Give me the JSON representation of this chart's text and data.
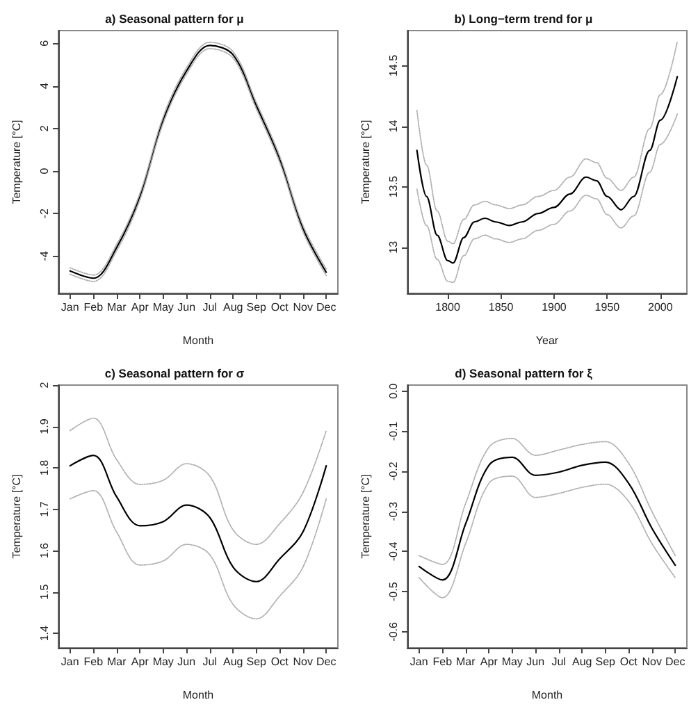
{
  "chart_data": [
    {
      "type": "line",
      "title": "a) Seasonal pattern for μ",
      "xlabel": "Month",
      "ylabel": "Temperature [°C]",
      "ylim": [
        -5.75,
        6.6
      ],
      "categories": [
        "Jan",
        "Feb",
        "Mar",
        "Apr",
        "May",
        "Jun",
        "Jul",
        "Aug",
        "Sep",
        "Oct",
        "Nov",
        "Dec"
      ],
      "yticks": [
        -4,
        -2,
        0,
        2,
        4,
        6
      ],
      "grid": false,
      "line_style": "solid",
      "series": [
        {
          "color": "#000000",
          "values": [
            -4.7,
            -5.04,
            -3.6,
            -1.2,
            2.4,
            4.7,
            5.9,
            5.46,
            3.07,
            0.56,
            -2.7,
            -4.76
          ]
        },
        {
          "color": "#b0b0b0",
          "line_style": "dotted",
          "values": [
            -4.85,
            -5.19,
            -3.75,
            -1.35,
            2.25,
            4.55,
            5.75,
            5.31,
            2.92,
            0.41,
            -2.85,
            -4.91
          ]
        },
        {
          "color": "#b0b0b0",
          "line_style": "dotted",
          "values": [
            -4.55,
            -4.89,
            -3.45,
            -1.05,
            2.55,
            4.85,
            6.05,
            5.61,
            3.22,
            0.71,
            -2.55,
            -4.61
          ]
        }
      ]
    },
    {
      "type": "line",
      "title": "b) Long−term trend for μ",
      "xlabel": "Year",
      "ylabel": "Temperature [°C]",
      "xlim": [
        1762,
        2025
      ],
      "ylim": [
        12.62,
        14.79
      ],
      "xticks": [
        1800,
        1850,
        1900,
        1950,
        2000
      ],
      "yticks": [
        13.0,
        13.5,
        14.0,
        14.5
      ],
      "grid": false,
      "line_style": "solid",
      "x": [
        1771,
        1780,
        1790,
        1800,
        1805,
        1815,
        1825,
        1835,
        1845,
        1858,
        1870,
        1885,
        1900,
        1915,
        1930,
        1940,
        1950,
        1963,
        1975,
        1990,
        2000,
        2016
      ],
      "series": [
        {
          "color": "#000000",
          "values": [
            13.8,
            13.42,
            13.1,
            12.89,
            12.87,
            13.08,
            13.21,
            13.24,
            13.21,
            13.18,
            13.21,
            13.28,
            13.33,
            13.44,
            13.58,
            13.55,
            13.42,
            13.31,
            13.42,
            13.8,
            14.05,
            14.41
          ]
        },
        {
          "color": "#b0b0b0",
          "line_style": "dotted",
          "values": [
            13.48,
            13.18,
            12.9,
            12.72,
            12.71,
            12.93,
            13.07,
            13.1,
            13.07,
            13.04,
            13.07,
            13.14,
            13.19,
            13.3,
            13.43,
            13.4,
            13.27,
            13.16,
            13.26,
            13.62,
            13.85,
            14.1
          ]
        },
        {
          "color": "#b0b0b0",
          "line_style": "dotted",
          "values": [
            14.13,
            13.68,
            13.3,
            13.05,
            13.03,
            13.23,
            13.35,
            13.38,
            13.35,
            13.32,
            13.35,
            13.42,
            13.47,
            13.58,
            13.73,
            13.7,
            13.57,
            13.47,
            13.58,
            13.98,
            14.26,
            14.7
          ]
        }
      ]
    },
    {
      "type": "line",
      "title": "c) Seasonal pattern for σ",
      "xlabel": "Month",
      "ylabel": "Temperature [°C]",
      "ylim": [
        1.365,
        2.0
      ],
      "categories": [
        "Jan",
        "Feb",
        "Mar",
        "Apr",
        "May",
        "Jun",
        "Jul",
        "Aug",
        "Sep",
        "Oct",
        "Nov",
        "Dec"
      ],
      "yticks": [
        1.4,
        1.5,
        1.6,
        1.7,
        1.8,
        1.9,
        2.0
      ],
      "grid": false,
      "line_style": "solid",
      "series": [
        {
          "color": "#000000",
          "values": [
            1.805,
            1.83,
            1.73,
            1.66,
            1.67,
            1.71,
            1.68,
            1.56,
            1.525,
            1.58,
            1.645,
            1.805
          ]
        },
        {
          "color": "#b0b0b0",
          "line_style": "dotted",
          "values": [
            1.725,
            1.745,
            1.645,
            1.565,
            1.575,
            1.615,
            1.59,
            1.47,
            1.435,
            1.49,
            1.56,
            1.725
          ]
        },
        {
          "color": "#b0b0b0",
          "line_style": "dotted",
          "values": [
            1.89,
            1.92,
            1.82,
            1.76,
            1.77,
            1.81,
            1.78,
            1.65,
            1.615,
            1.665,
            1.74,
            1.89
          ]
        }
      ]
    },
    {
      "type": "line",
      "title": "d) Seasonal pattern for ξ",
      "xlabel": "Month",
      "ylabel": "Temperature [°C]",
      "ylim": [
        -0.64,
        0.015
      ],
      "categories": [
        "Jan",
        "Feb",
        "Mar",
        "Apr",
        "May",
        "Jun",
        "Jul",
        "Aug",
        "Sep",
        "Oct",
        "Nov",
        "Dec"
      ],
      "yticks": [
        {
          "value": -0.6,
          "label": "-0.6"
        },
        {
          "value": -0.5,
          "label": "-0.5"
        },
        {
          "value": -0.4,
          "label": "-0.4"
        },
        {
          "value": -0.3,
          "label": "-0.3"
        },
        {
          "value": -0.2,
          "label": "-0.2"
        },
        {
          "value": -0.1,
          "label": "-0.1"
        },
        {
          "value": 0,
          "label": "0.0"
        }
      ],
      "grid": false,
      "line_style": "solid",
      "series": [
        {
          "color": "#000000",
          "values": [
            -0.437,
            -0.471,
            -0.331,
            -0.185,
            -0.165,
            -0.21,
            -0.202,
            -0.185,
            -0.177,
            -0.23,
            -0.342,
            -0.434
          ]
        },
        {
          "color": "#b0b0b0",
          "line_style": "dotted",
          "values": [
            -0.465,
            -0.515,
            -0.38,
            -0.23,
            -0.212,
            -0.265,
            -0.255,
            -0.24,
            -0.232,
            -0.275,
            -0.38,
            -0.465
          ]
        },
        {
          "color": "#b0b0b0",
          "line_style": "dotted",
          "values": [
            -0.41,
            -0.432,
            -0.28,
            -0.14,
            -0.118,
            -0.16,
            -0.147,
            -0.133,
            -0.126,
            -0.18,
            -0.3,
            -0.41
          ]
        }
      ]
    }
  ]
}
